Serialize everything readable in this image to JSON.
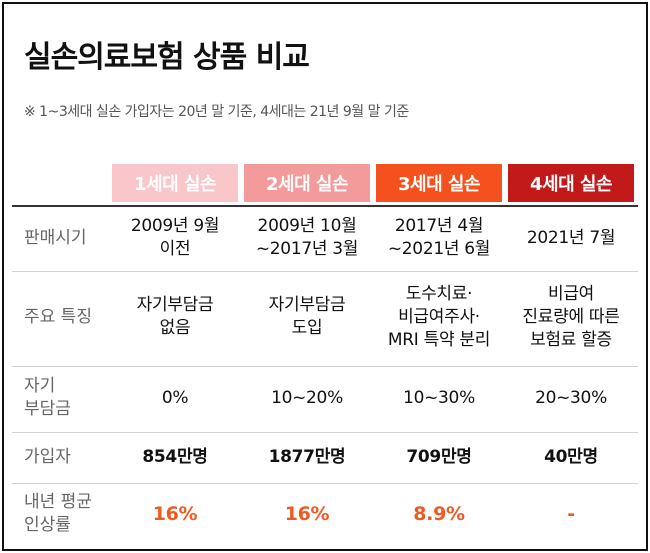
{
  "title": "실손의료보험 상품 비교",
  "subtitle": "※ 1~3세대 실손 가입자는 20년 말 기준, 4세대는 21년 9월 말 기준",
  "colors": {
    "gen1": "#f9c7ca",
    "gen2": "#f39a9a",
    "gen3": "#f4511e",
    "gen4": "#c21a1a",
    "highlight": "#ee5a24"
  },
  "columns": [
    "1세대 실손",
    "2세대 실손",
    "3세대 실손",
    "4세대 실손"
  ],
  "rows": {
    "sale_period": {
      "label": "판매시기",
      "values": [
        [
          "2009년 9월",
          "이전"
        ],
        [
          "2009년 10월",
          "~2017년 3월"
        ],
        [
          "2017년 4월",
          "~2021년 6월"
        ],
        [
          "2021년 7월"
        ]
      ]
    },
    "features": {
      "label": "주요 특징",
      "values": [
        [
          "자기부담금",
          "없음"
        ],
        [
          "자기부담금",
          "도입"
        ],
        [
          "도수치료·",
          "비급여주사·",
          "MRI 특약 분리"
        ],
        [
          "비급여",
          "진료량에 따른",
          "보험료 할증"
        ]
      ]
    },
    "deductible": {
      "label": [
        "자기",
        "부담금"
      ],
      "values": [
        "0%",
        "10~20%",
        "10~30%",
        "20~30%"
      ]
    },
    "subscribers": {
      "label": "가입자",
      "values": [
        "854만명",
        "1877만명",
        "709만명",
        "40만명"
      ]
    },
    "increase": {
      "label": [
        "내년 평균",
        "인상률"
      ],
      "values": [
        "16%",
        "16%",
        "8.9%",
        "-"
      ]
    }
  }
}
